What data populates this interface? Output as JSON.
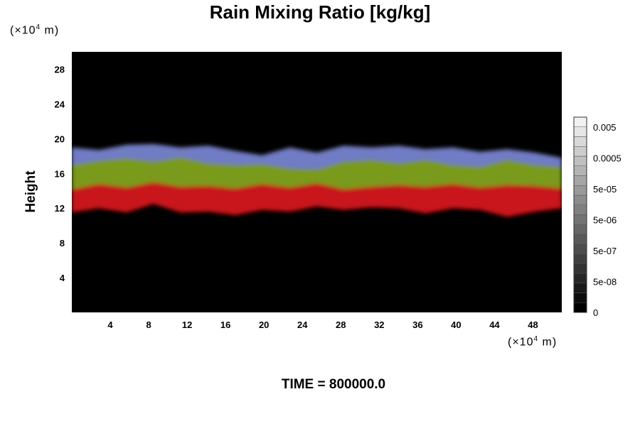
{
  "chart_data": {
    "type": "heatmap",
    "title": "Rain Mixing Ratio [kg/kg]",
    "ylabel": "Height",
    "xunit": "×10",
    "xunit_exp": "4",
    "xunit_m": " m",
    "yunit": "×10",
    "yunit_exp": "4",
    "yunit_m": " m",
    "xlim": [
      0,
      51
    ],
    "ylim": [
      0,
      30
    ],
    "xticks": [
      4,
      8,
      12,
      16,
      20,
      24,
      28,
      32,
      36,
      40,
      44,
      48
    ],
    "yticks": [
      4,
      8,
      12,
      16,
      20,
      24,
      28
    ],
    "background_color": "#000000",
    "layers": [
      {
        "color": "#c8161a",
        "ybottom": [
          11.5,
          12.0,
          11.5,
          12.5,
          11.5,
          11.6,
          11.2,
          11.8,
          11.6,
          12.2,
          11.8,
          12.1,
          12.0,
          11.4,
          12.0,
          11.8,
          11.0,
          11.6,
          12.0
        ],
        "ytop": [
          14.2,
          14.8,
          14.4,
          15.0,
          14.5,
          14.6,
          14.3,
          14.8,
          14.4,
          14.9,
          14.2,
          14.5,
          14.7,
          14.5,
          14.8,
          14.4,
          14.7,
          14.6,
          14.3
        ]
      },
      {
        "color": "#7a9a1c",
        "ybottom": [
          14.2,
          14.8,
          14.4,
          15.0,
          14.5,
          14.6,
          14.3,
          14.8,
          14.4,
          14.9,
          14.2,
          14.5,
          14.7,
          14.5,
          14.8,
          14.4,
          14.7,
          14.6,
          14.3
        ],
        "ytop": [
          17.0,
          17.5,
          17.8,
          17.4,
          17.9,
          17.2,
          17.0,
          17.1,
          16.6,
          16.5,
          17.4,
          17.6,
          17.2,
          17.6,
          17.0,
          16.8,
          17.6,
          17.0,
          16.8
        ]
      },
      {
        "color": "#6f7cc4",
        "ybottom": [
          17.0,
          17.5,
          17.8,
          17.4,
          17.9,
          17.2,
          17.0,
          17.1,
          16.6,
          16.5,
          17.4,
          17.6,
          17.2,
          17.6,
          17.0,
          16.8,
          17.6,
          17.0,
          16.8
        ],
        "ytop": [
          19.0,
          18.7,
          19.3,
          19.4,
          19.0,
          19.2,
          18.6,
          18.1,
          19.0,
          18.4,
          19.2,
          19.0,
          19.2,
          18.8,
          19.0,
          18.5,
          18.8,
          18.4,
          17.8
        ]
      }
    ],
    "layer_x": [
      0,
      2.8,
      5.7,
      8.5,
      11.3,
      14.2,
      17.0,
      19.8,
      22.7,
      25.5,
      28.3,
      31.2,
      34.0,
      36.8,
      39.7,
      42.5,
      45.3,
      48.2,
      51
    ],
    "colorbar": {
      "levels": 20,
      "labels": [
        "0.005",
        "0.0005",
        "5e-05",
        "5e-06",
        "5e-07",
        "5e-08",
        "0"
      ],
      "colors": [
        "#000000",
        "#0d0d0d",
        "#1a1a1a",
        "#262626",
        "#333333",
        "#404040",
        "#4d4d4d",
        "#595959",
        "#666666",
        "#737373",
        "#808080",
        "#8c8c8c",
        "#999999",
        "#a6a6a6",
        "#b3b3b3",
        "#bfbfbf",
        "#cccccc",
        "#d9d9d9",
        "#e6e6e6",
        "#f2f2f2"
      ]
    },
    "time_label": "TIME = 800000.0"
  }
}
